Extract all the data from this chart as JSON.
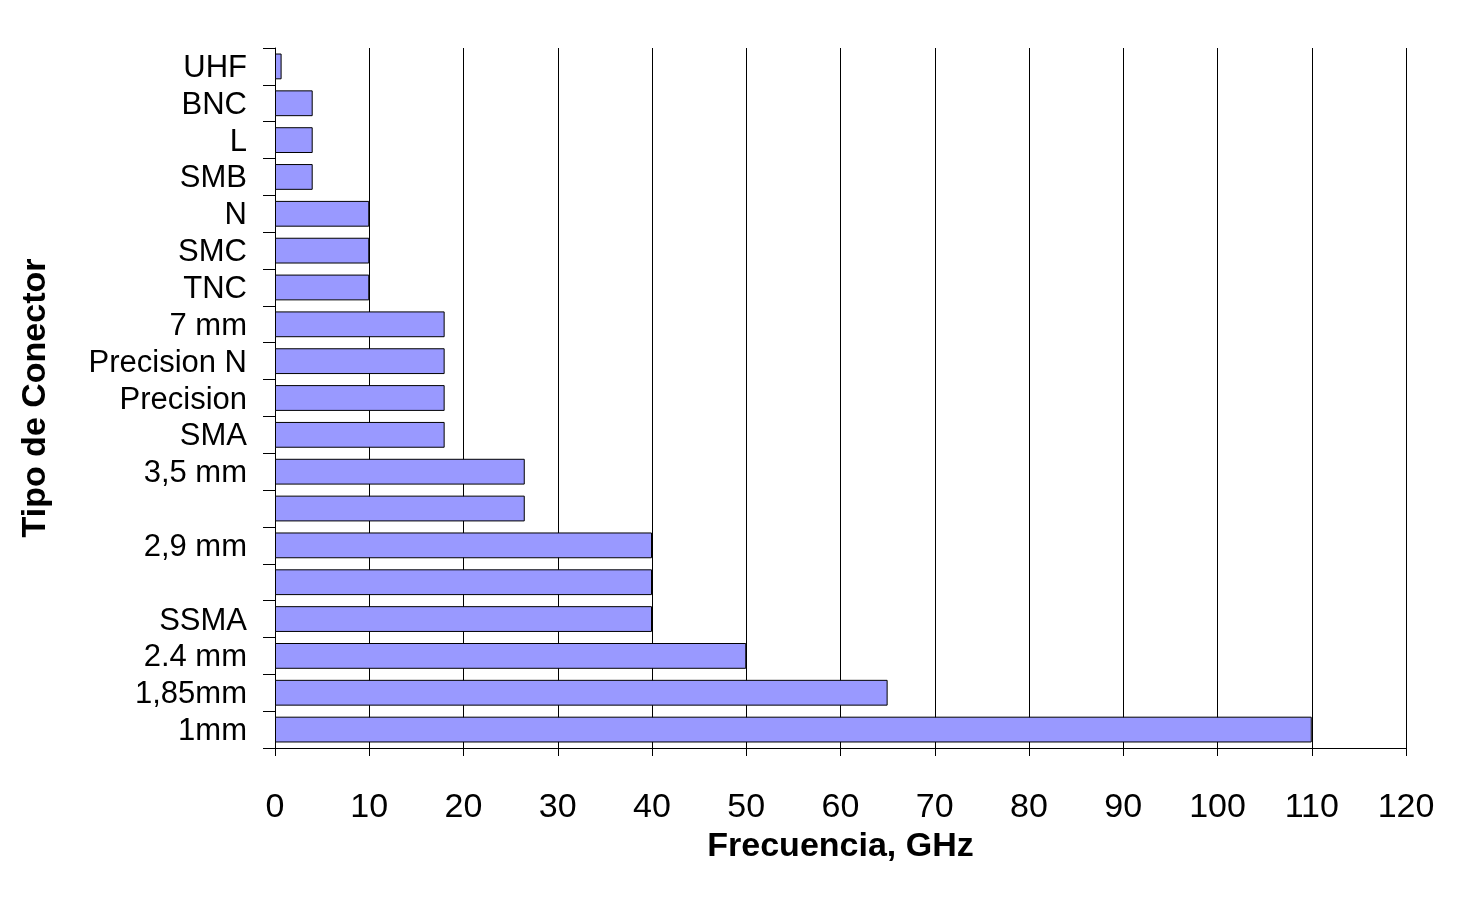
{
  "chart_data": {
    "type": "bar",
    "orientation": "horizontal",
    "xlabel": "Frecuencia, GHz",
    "ylabel": "Tipo de Conector",
    "categories": [
      "UHF",
      "BNC",
      "L",
      "SMB",
      "N",
      "SMC",
      "TNC",
      "7 mm",
      "Precision N",
      "Precision",
      "SMA",
      "3,5 mm",
      null,
      "2,9 mm",
      null,
      "SSMA",
      "2.4 mm",
      "1,85mm",
      "1mm"
    ],
    "values": [
      0.7,
      4,
      4,
      4,
      10,
      10,
      10,
      18,
      18,
      18,
      18,
      26.5,
      26.5,
      40,
      40,
      40,
      50,
      65,
      110
    ],
    "color": "#9999ff",
    "xlim": [
      0,
      120
    ],
    "xticks": [
      0,
      10,
      20,
      30,
      40,
      50,
      60,
      70,
      80,
      90,
      100,
      110,
      120
    ],
    "grid": "x"
  }
}
